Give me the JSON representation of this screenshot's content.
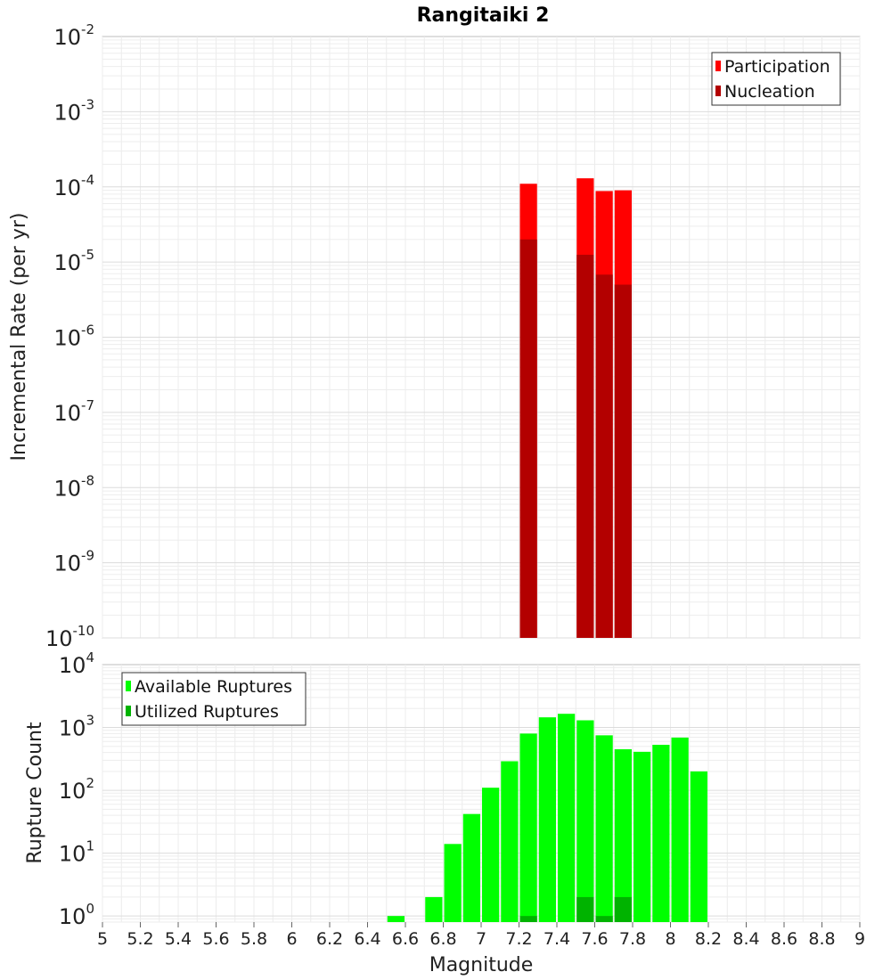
{
  "chart_data": [
    {
      "type": "bar",
      "title": "Rangitaiki 2",
      "ylabel": "Incremental Rate (per yr)",
      "xlabel": "",
      "yscale": "log",
      "ylim": [
        1e-10,
        0.01
      ],
      "xlim": [
        5,
        9
      ],
      "bin_width": 0.1,
      "grid": true,
      "legend": "top-right",
      "y_ticks": [
        {
          "base": "10",
          "exp": "-10",
          "value": 1e-10
        },
        {
          "base": "10",
          "exp": "-9",
          "value": 1e-09
        },
        {
          "base": "10",
          "exp": "-8",
          "value": 1e-08
        },
        {
          "base": "10",
          "exp": "-7",
          "value": 1e-07
        },
        {
          "base": "10",
          "exp": "-6",
          "value": 1e-06
        },
        {
          "base": "10",
          "exp": "-5",
          "value": 1e-05
        },
        {
          "base": "10",
          "exp": "-4",
          "value": 0.0001
        },
        {
          "base": "10",
          "exp": "-3",
          "value": 0.001
        },
        {
          "base": "10",
          "exp": "-2",
          "value": 0.01
        }
      ],
      "series": [
        {
          "name": "Participation",
          "color": "#ff0000",
          "points": [
            {
              "x": 7.25,
              "y": 0.00011
            },
            {
              "x": 7.55,
              "y": 0.00013
            },
            {
              "x": 7.65,
              "y": 8.8e-05
            },
            {
              "x": 7.75,
              "y": 9e-05
            }
          ]
        },
        {
          "name": "Nucleation",
          "color": "#b30000",
          "points": [
            {
              "x": 7.25,
              "y": 2e-05
            },
            {
              "x": 7.55,
              "y": 1.25e-05
            },
            {
              "x": 7.65,
              "y": 6.8e-06
            },
            {
              "x": 7.75,
              "y": 5e-06
            }
          ]
        }
      ]
    },
    {
      "type": "bar",
      "title": "",
      "ylabel": "Rupture Count",
      "xlabel": "Magnitude",
      "yscale": "log",
      "ylim": [
        0.8,
        10000
      ],
      "xlim": [
        5,
        9
      ],
      "bin_width": 0.1,
      "grid": true,
      "legend": "top-left",
      "x_ticks": [
        "5",
        "5.2",
        "5.4",
        "5.6",
        "5.8",
        "6",
        "6.2",
        "6.4",
        "6.6",
        "6.8",
        "7",
        "7.2",
        "7.4",
        "7.6",
        "7.8",
        "8",
        "8.2",
        "8.4",
        "8.6",
        "8.8",
        "9"
      ],
      "y_ticks": [
        {
          "base": "10",
          "exp": "0",
          "value": 1
        },
        {
          "base": "10",
          "exp": "1",
          "value": 10
        },
        {
          "base": "10",
          "exp": "2",
          "value": 100
        },
        {
          "base": "10",
          "exp": "3",
          "value": 1000
        },
        {
          "base": "10",
          "exp": "4",
          "value": 10000
        }
      ],
      "series": [
        {
          "name": "Available Ruptures",
          "color": "#00ff00",
          "points": [
            {
              "x": 6.55,
              "y": 1
            },
            {
              "x": 6.75,
              "y": 2
            },
            {
              "x": 6.85,
              "y": 14
            },
            {
              "x": 6.95,
              "y": 42
            },
            {
              "x": 7.05,
              "y": 110
            },
            {
              "x": 7.15,
              "y": 290
            },
            {
              "x": 7.25,
              "y": 800
            },
            {
              "x": 7.35,
              "y": 1450
            },
            {
              "x": 7.45,
              "y": 1650
            },
            {
              "x": 7.55,
              "y": 1300
            },
            {
              "x": 7.65,
              "y": 750
            },
            {
              "x": 7.75,
              "y": 450
            },
            {
              "x": 7.85,
              "y": 410
            },
            {
              "x": 7.95,
              "y": 530
            },
            {
              "x": 8.05,
              "y": 690
            },
            {
              "x": 8.15,
              "y": 200
            }
          ]
        },
        {
          "name": "Utilized Ruptures",
          "color": "#00b300",
          "points": [
            {
              "x": 7.25,
              "y": 1
            },
            {
              "x": 7.55,
              "y": 2
            },
            {
              "x": 7.65,
              "y": 1
            },
            {
              "x": 7.75,
              "y": 2
            }
          ]
        }
      ]
    }
  ]
}
